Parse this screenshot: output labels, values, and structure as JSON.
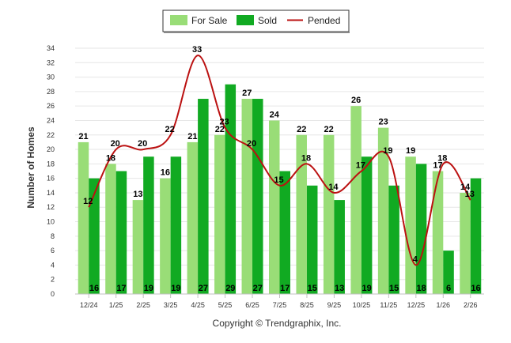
{
  "chart_data": {
    "type": "bar",
    "title": "",
    "xlabel": "",
    "ylabel": "Number of Homes",
    "ylim": [
      0,
      34
    ],
    "yticks": [
      0,
      2,
      4,
      6,
      8,
      10,
      12,
      14,
      16,
      18,
      20,
      22,
      24,
      26,
      28,
      30,
      32,
      34
    ],
    "grid": true,
    "legend": "top-center",
    "categories": [
      "12/24",
      "1/25",
      "2/25",
      "3/25",
      "4/25",
      "5/25",
      "6/25",
      "7/25",
      "8/25",
      "9/25",
      "10/25",
      "11/25",
      "12/25",
      "1/26",
      "2/26"
    ],
    "series": [
      {
        "name": "For Sale",
        "type": "bar",
        "color": "#99dd77",
        "values": [
          21,
          18,
          13,
          16,
          21,
          22,
          27,
          24,
          22,
          22,
          26,
          23,
          19,
          17,
          14
        ]
      },
      {
        "name": "Sold",
        "type": "bar",
        "color": "#11aa22",
        "values": [
          16,
          17,
          19,
          19,
          27,
          29,
          27,
          17,
          15,
          13,
          19,
          15,
          18,
          6,
          16
        ]
      },
      {
        "name": "Pended",
        "type": "line",
        "color": "#bb1111",
        "values": [
          12,
          20,
          20,
          22,
          33,
          23,
          20,
          15,
          18,
          14,
          17,
          19,
          4,
          18,
          13
        ]
      }
    ]
  },
  "footer": {
    "copyright": "Copyright © Trendgraphix, Inc."
  }
}
